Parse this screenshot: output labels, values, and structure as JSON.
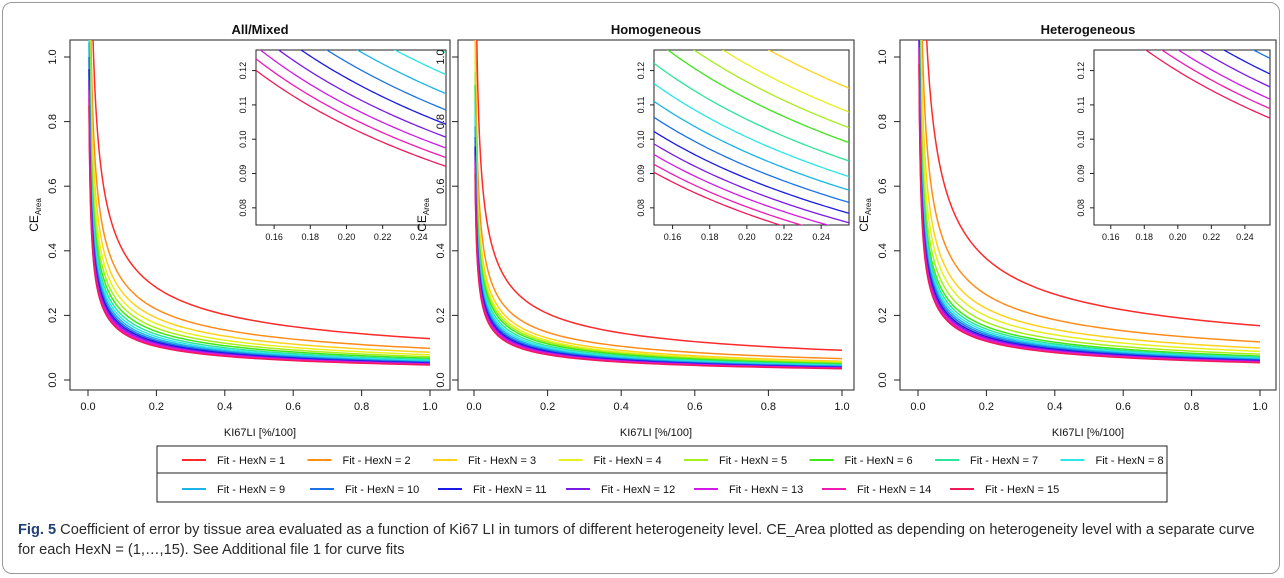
{
  "figure": {
    "caption_label": "Fig. 5",
    "caption_text": " Coefficient of error by tissue area evaluated as a function of Ki67 LI in tumors of different heterogeneity level. CE_Area plotted as depending on heterogeneity level with a separate curve for each HexN = (1,…,15). See Additional file 1 for curve fits"
  },
  "colors": {
    "series": [
      "#ff2a2a",
      "#ff8c1a",
      "#ffd21a",
      "#e6f01a",
      "#a6ee1a",
      "#3ee61a",
      "#2ae69a",
      "#2ae6e6",
      "#1ab4e6",
      "#1a72e6",
      "#1a1ae6",
      "#7a1ae6",
      "#d21ae6",
      "#f01ab4",
      "#f01a5a"
    ]
  },
  "legend": {
    "items": [
      "Fit - HexN = 1",
      "Fit - HexN = 2",
      "Fit - HexN = 3",
      "Fit - HexN = 4",
      "Fit - HexN = 5",
      "Fit - HexN = 6",
      "Fit - HexN = 7",
      "Fit - HexN = 8",
      "Fit - HexN = 9",
      "Fit - HexN = 10",
      "Fit - HexN = 11",
      "Fit - HexN = 12",
      "Fit - HexN = 13",
      "Fit - HexN = 14",
      "Fit - HexN = 15"
    ]
  },
  "chart_data": [
    {
      "type": "line",
      "title": "All/Mixed",
      "xlabel": "KI67LI [%/100]",
      "ylabel_main": "CE",
      "ylabel_sub": "Area",
      "xlim": [
        0,
        1
      ],
      "ylim": [
        0,
        1
      ],
      "xticks": [
        "0.0",
        "0.2",
        "0.4",
        "0.6",
        "0.8",
        "1.0"
      ],
      "yticks": [
        "0.0",
        "0.2",
        "0.4",
        "0.6",
        "0.8",
        "1.0"
      ],
      "curve_model": "y = a / sqrt(x)",
      "series": [
        {
          "name": "Fit - HexN = 1",
          "a": 0.128
        },
        {
          "name": "Fit - HexN = 2",
          "a": 0.098
        },
        {
          "name": "Fit - HexN = 3",
          "a": 0.086
        },
        {
          "name": "Fit - HexN = 4",
          "a": 0.078
        },
        {
          "name": "Fit - HexN = 5",
          "a": 0.072
        },
        {
          "name": "Fit - HexN = 6",
          "a": 0.0672
        },
        {
          "name": "Fit - HexN = 7",
          "a": 0.0632
        },
        {
          "name": "Fit - HexN = 8",
          "a": 0.06
        },
        {
          "name": "Fit - HexN = 9",
          "a": 0.0572
        },
        {
          "name": "Fit - HexN = 10",
          "a": 0.0548
        },
        {
          "name": "Fit - HexN = 11",
          "a": 0.0527
        },
        {
          "name": "Fit - HexN = 12",
          "a": 0.0508
        },
        {
          "name": "Fit - HexN = 13",
          "a": 0.0492
        },
        {
          "name": "Fit - HexN = 14",
          "a": 0.0478
        },
        {
          "name": "Fit - HexN = 15",
          "a": 0.0465
        }
      ],
      "inset": {
        "xlim": [
          0.15,
          0.255
        ],
        "ylim": [
          0.075,
          0.126
        ],
        "xticks": [
          "0.16",
          "0.18",
          "0.20",
          "0.22",
          "0.24"
        ],
        "yticks": [
          "0.08",
          "0.09",
          "0.10",
          "0.11",
          "0.12"
        ]
      }
    },
    {
      "type": "line",
      "title": "Homogeneous",
      "xlabel": "KI67LI [%/100]",
      "ylabel_main": "CE",
      "ylabel_sub": "Area",
      "xlim": [
        0,
        1
      ],
      "ylim": [
        0,
        1
      ],
      "xticks": [
        "0.0",
        "0.2",
        "0.4",
        "0.6",
        "0.8",
        "1.0"
      ],
      "yticks": [
        "0.0",
        "0.2",
        "0.4",
        "0.6",
        "0.8",
        "1.0"
      ],
      "curve_model": "y = a / sqrt(x)",
      "series": [
        {
          "name": "Fit - HexN = 1",
          "a": 0.092
        },
        {
          "name": "Fit - HexN = 2",
          "a": 0.066
        },
        {
          "name": "Fit - HexN = 3",
          "a": 0.058
        },
        {
          "name": "Fit - HexN = 4",
          "a": 0.0545
        },
        {
          "name": "Fit - HexN = 5",
          "a": 0.0522
        },
        {
          "name": "Fit - HexN = 6",
          "a": 0.05
        },
        {
          "name": "Fit - HexN = 7",
          "a": 0.0473
        },
        {
          "name": "Fit - HexN = 8",
          "a": 0.045
        },
        {
          "name": "Fit - HexN = 9",
          "a": 0.043
        },
        {
          "name": "Fit - HexN = 10",
          "a": 0.0412
        },
        {
          "name": "Fit - HexN = 11",
          "a": 0.0396
        },
        {
          "name": "Fit - HexN = 12",
          "a": 0.0382
        },
        {
          "name": "Fit - HexN = 13",
          "a": 0.037
        },
        {
          "name": "Fit - HexN = 14",
          "a": 0.0359
        },
        {
          "name": "Fit - HexN = 15",
          "a": 0.035
        }
      ],
      "inset": {
        "xlim": [
          0.15,
          0.255
        ],
        "ylim": [
          0.075,
          0.126
        ],
        "xticks": [
          "0.16",
          "0.18",
          "0.20",
          "0.22",
          "0.24"
        ],
        "yticks": [
          "0.08",
          "0.09",
          "0.10",
          "0.11",
          "0.12"
        ]
      }
    },
    {
      "type": "line",
      "title": "Heterogeneous",
      "xlabel": "KI67LI [%/100]",
      "ylabel_main": "CE",
      "ylabel_sub": "Area",
      "xlim": [
        0,
        1
      ],
      "ylim": [
        0,
        1
      ],
      "xticks": [
        "0.0",
        "0.2",
        "0.4",
        "0.6",
        "0.8",
        "1.0"
      ],
      "yticks": [
        "0.0",
        "0.2",
        "0.4",
        "0.6",
        "0.8",
        "1.0"
      ],
      "curve_model": "y = a / sqrt(x)",
      "series": [
        {
          "name": "Fit - HexN = 1",
          "a": 0.168
        },
        {
          "name": "Fit - HexN = 2",
          "a": 0.118
        },
        {
          "name": "Fit - HexN = 3",
          "a": 0.099
        },
        {
          "name": "Fit - HexN = 4",
          "a": 0.0885
        },
        {
          "name": "Fit - HexN = 5",
          "a": 0.08
        },
        {
          "name": "Fit - HexN = 6",
          "a": 0.074
        },
        {
          "name": "Fit - HexN = 7",
          "a": 0.0705
        },
        {
          "name": "Fit - HexN = 8",
          "a": 0.0675
        },
        {
          "name": "Fit - HexN = 9",
          "a": 0.0648
        },
        {
          "name": "Fit - HexN = 10",
          "a": 0.0624
        },
        {
          "name": "Fit - HexN = 11",
          "a": 0.0601
        },
        {
          "name": "Fit - HexN = 12",
          "a": 0.0582
        },
        {
          "name": "Fit - HexN = 13",
          "a": 0.0564
        },
        {
          "name": "Fit - HexN = 14",
          "a": 0.055
        },
        {
          "name": "Fit - HexN = 15",
          "a": 0.0536
        }
      ],
      "inset": {
        "xlim": [
          0.15,
          0.255
        ],
        "ylim": [
          0.075,
          0.126
        ],
        "xticks": [
          "0.16",
          "0.18",
          "0.20",
          "0.22",
          "0.24"
        ],
        "yticks": [
          "0.08",
          "0.09",
          "0.10",
          "0.11",
          "0.12"
        ]
      }
    }
  ]
}
